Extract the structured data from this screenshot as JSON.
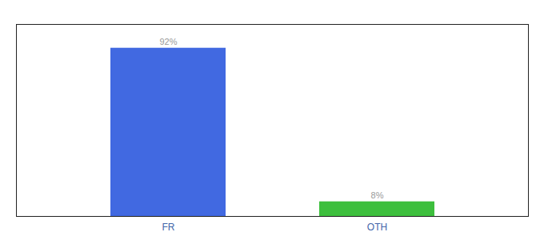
{
  "chart_data": {
    "type": "bar",
    "categories": [
      "FR",
      "OTH"
    ],
    "values": [
      92,
      8
    ],
    "value_labels": [
      "92%",
      "8%"
    ],
    "colors": [
      "#4169e1",
      "#3dbf3d"
    ],
    "ylim": [
      0,
      105
    ],
    "data_labels": true,
    "tick_labels": "x",
    "grid": false
  }
}
